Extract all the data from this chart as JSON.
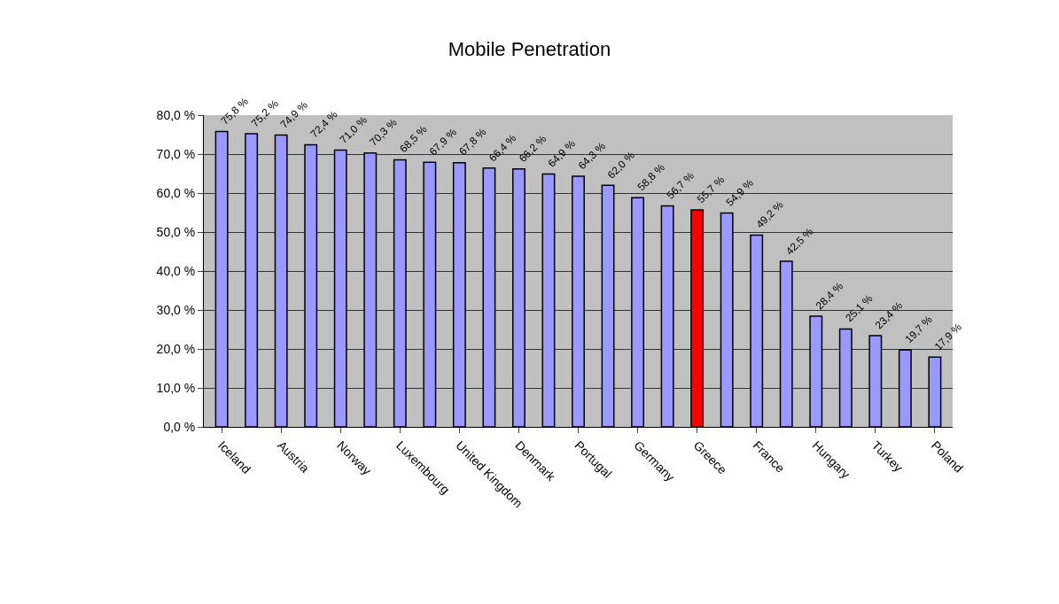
{
  "chart_data": {
    "type": "bar",
    "title": "Mobile Penetration",
    "categories": [
      "Iceland",
      null,
      "Austria",
      null,
      "Norway",
      null,
      "Luxembourg",
      null,
      "United Kingdom",
      null,
      "Denmark",
      null,
      "Portugal",
      null,
      "Germany",
      null,
      "Greece",
      null,
      "France",
      null,
      "Hungary",
      null,
      "Turkey",
      null,
      "Poland"
    ],
    "values": [
      75.8,
      75.2,
      74.9,
      72.4,
      71.0,
      70.3,
      68.5,
      67.9,
      67.8,
      66.4,
      66.2,
      64.9,
      64.3,
      62.0,
      58.8,
      56.7,
      55.7,
      54.9,
      49.2,
      42.5,
      28.4,
      25.1,
      23.4,
      19.7,
      17.9
    ],
    "value_labels": [
      "75,8 %",
      "75,2 %",
      "74,9 %",
      "72,4 %",
      "71,0 %",
      "70,3 %",
      "68,5 %",
      "67,9 %",
      "67,8 %",
      "66,4 %",
      "66,2 %",
      "64,9 %",
      "64,3 %",
      "62,0 %",
      "58,8 %",
      "56,7 %",
      "55,7 %",
      "54,9 %",
      "49,2 %",
      "42,5 %",
      "28,4 %",
      "25,1 %",
      "23,4 %",
      "19,7 %",
      "17,9 %"
    ],
    "colors": [
      "#9999ff",
      "#9999ff",
      "#9999ff",
      "#9999ff",
      "#9999ff",
      "#9999ff",
      "#9999ff",
      "#9999ff",
      "#9999ff",
      "#9999ff",
      "#9999ff",
      "#9999ff",
      "#9999ff",
      "#9999ff",
      "#9999ff",
      "#9999ff",
      "#ff0000",
      "#9999ff",
      "#9999ff",
      "#9999ff",
      "#9999ff",
      "#9999ff",
      "#9999ff",
      "#9999ff",
      "#9999ff"
    ],
    "ylim": [
      0,
      80
    ],
    "yticks": [
      {
        "value": 0,
        "label": "0,0 %"
      },
      {
        "value": 10,
        "label": "10,0 %"
      },
      {
        "value": 20,
        "label": "20,0 %"
      },
      {
        "value": 30,
        "label": "30,0 %"
      },
      {
        "value": 40,
        "label": "40,0 %"
      },
      {
        "value": 50,
        "label": "50,0 %"
      },
      {
        "value": 60,
        "label": "60,0 %"
      },
      {
        "value": 70,
        "label": "70,0 %"
      },
      {
        "value": 80,
        "label": "80,0 %"
      }
    ],
    "grid": "y"
  }
}
